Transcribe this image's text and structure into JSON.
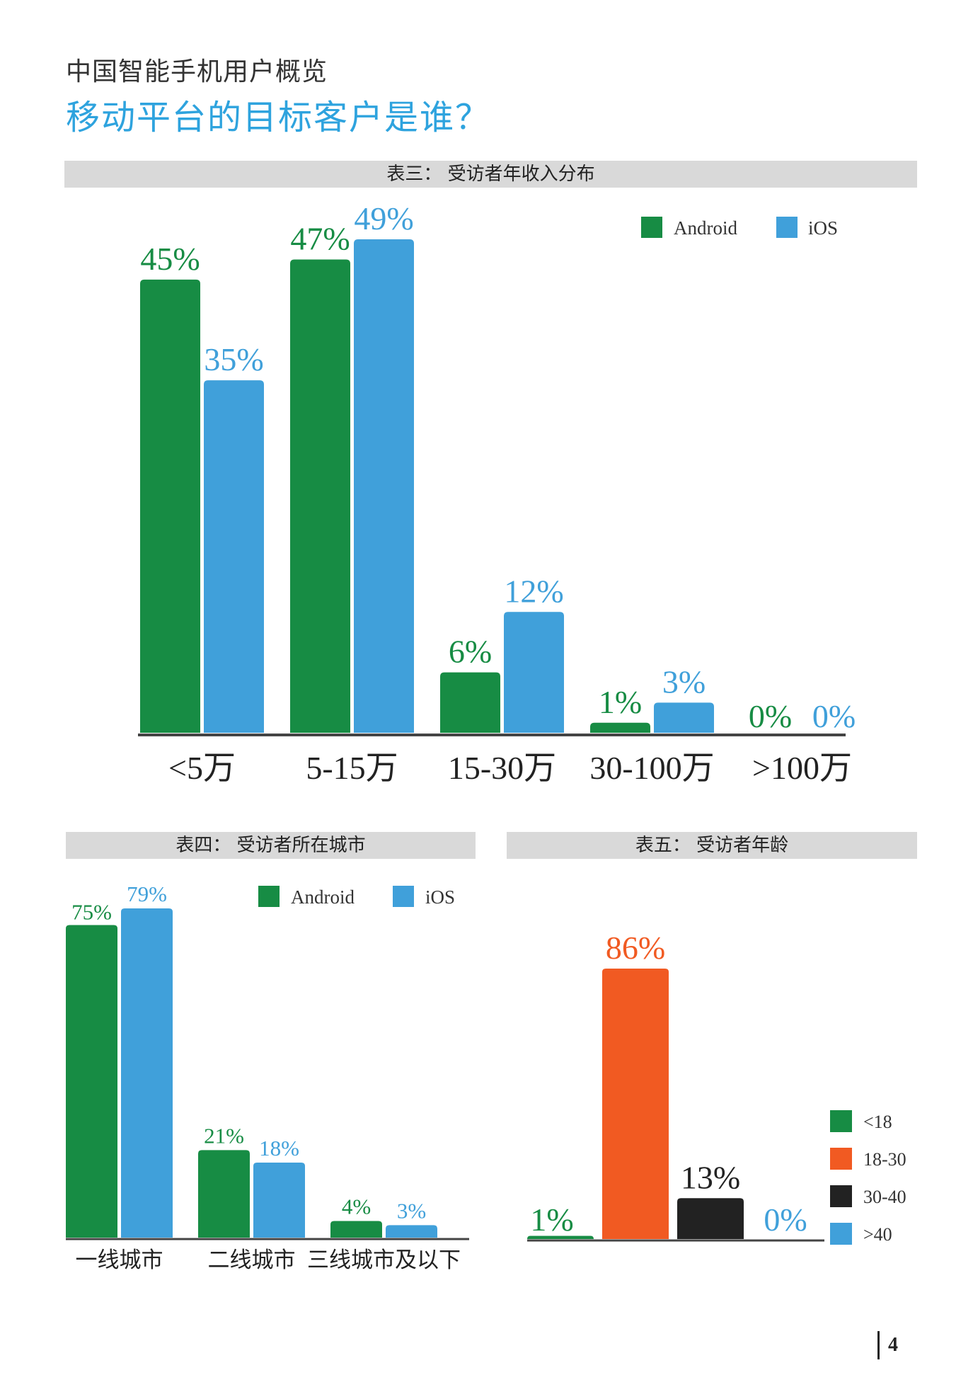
{
  "header": {
    "subtitle": "中国智能手机用户概览",
    "title": "移动平台的目标客户是谁？"
  },
  "page_number": "4",
  "colors": {
    "android": "#178c44",
    "ios": "#40a0da",
    "lt18": "#178c44",
    "age18_30": "#f15a22",
    "age30_40": "#222222",
    "gt40": "#40a0da"
  },
  "chart_data": [
    {
      "type": "bar",
      "title": "表三： 受访者年收入分布",
      "categories": [
        "<5万",
        "5-15万",
        "15-30万",
        "30-100万",
        ">100万"
      ],
      "series": [
        {
          "name": "Android",
          "values": [
            45,
            47,
            6,
            1,
            0
          ],
          "labels": [
            "45%",
            "47%",
            "6%",
            "1%",
            "0%"
          ]
        },
        {
          "name": "iOS",
          "values": [
            35,
            49,
            12,
            3,
            0
          ],
          "labels": [
            "35%",
            "49%",
            "12%",
            "3%",
            "0%"
          ]
        }
      ],
      "ylim": [
        0,
        49
      ],
      "legend": [
        "Android",
        "iOS"
      ]
    },
    {
      "type": "bar",
      "title": "表四： 受访者所在城市",
      "categories": [
        "一线城市",
        "二线城市",
        "三线城市及以下"
      ],
      "series": [
        {
          "name": "Android",
          "values": [
            75,
            21,
            4
          ],
          "labels": [
            "75%",
            "21%",
            "4%"
          ]
        },
        {
          "name": "iOS",
          "values": [
            79,
            18,
            3
          ],
          "labels": [
            "79%",
            "18%",
            "3%"
          ]
        }
      ],
      "ylim": [
        0,
        79
      ],
      "legend": [
        "Android",
        "iOS"
      ]
    },
    {
      "type": "bar",
      "title": "表五： 受访者年龄",
      "categories": [
        "<18",
        "18-30",
        "30-40",
        ">40"
      ],
      "values": [
        1,
        86,
        13,
        0
      ],
      "labels": [
        "1%",
        "86%",
        "13%",
        "0%"
      ],
      "ylim": [
        0,
        86
      ],
      "legend": [
        "<18",
        "18-30",
        "30-40",
        ">40"
      ]
    }
  ]
}
